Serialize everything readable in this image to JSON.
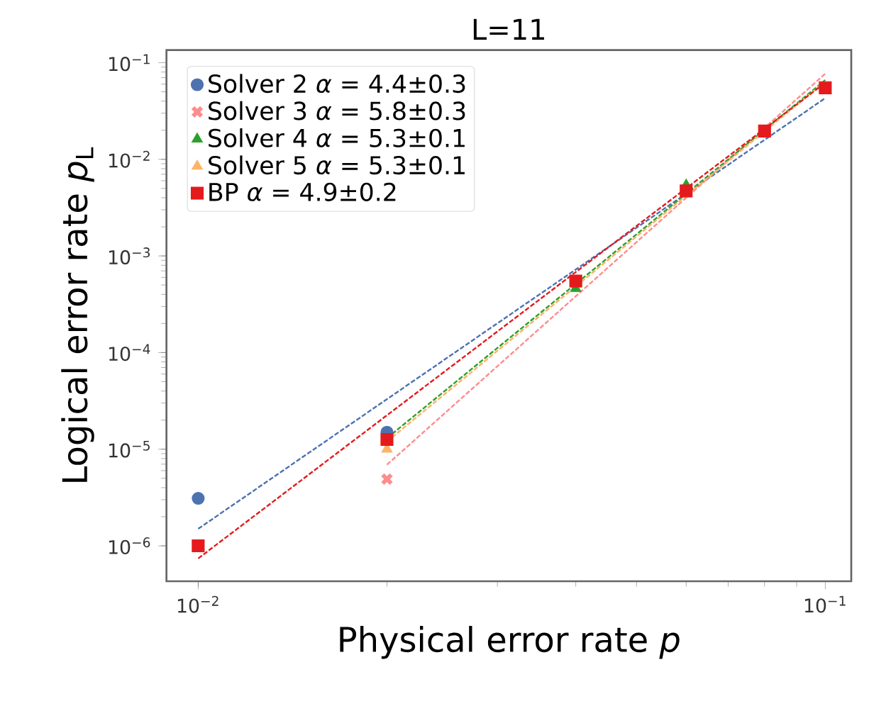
{
  "chart_data": {
    "type": "scatter",
    "title": "L=11",
    "xlabel": "Physical error rate *p*",
    "ylabel": "Logical error rate *p*$_{L}$",
    "log": "xy",
    "legend": "top left",
    "xlim": [
      0.0089,
      0.11
    ],
    "ylim": [
      4.3e-07,
      0.135
    ],
    "xticks": [
      {
        "value": 0.01,
        "label": "10$^{−2}$"
      },
      {
        "value": 0.1,
        "label": "10$^{−1}$"
      }
    ],
    "yticks": [
      {
        "value": 1e-06,
        "label": "10$^{−6}$"
      },
      {
        "value": 1e-05,
        "label": "10$^{−5}$"
      },
      {
        "value": 0.0001,
        "label": "10$^{−4}$"
      },
      {
        "value": 0.001,
        "label": "10$^{−3}$"
      },
      {
        "value": 0.01,
        "label": "10$^{−2}$"
      },
      {
        "value": 0.1,
        "label": "10$^{−1}$"
      }
    ],
    "x": [
      0.01,
      0.02,
      0.04,
      0.06,
      0.08,
      0.1
    ],
    "series": [
      {
        "x": [
          0.01,
          0.1
        ],
        "values": [
          1.5e-06,
          0.043
        ],
        "color": "#4c72b0",
        "type": "line",
        "line_style": "dashed",
        "marker": "none"
      },
      {
        "x": [
          0.02,
          0.1
        ],
        "values": [
          6.9e-06,
          0.077
        ],
        "color": "#ff8c8c",
        "type": "line",
        "line_style": "dashed",
        "marker": "none"
      },
      {
        "x": [
          0.02,
          0.1
        ],
        "values": [
          1.3e-05,
          0.066
        ],
        "color": "#2ca02c",
        "type": "line",
        "line_style": "dashed",
        "marker": "none"
      },
      {
        "x": [
          0.02,
          0.1
        ],
        "values": [
          1.2e-05,
          0.064
        ],
        "color": "#ffb366",
        "type": "line",
        "line_style": "dashed",
        "marker": "none"
      },
      {
        "x": [
          0.01,
          0.1
        ],
        "values": [
          7.4e-07,
          0.062
        ],
        "color": "#e41a1c",
        "type": "line",
        "line_style": "dashed",
        "marker": "none"
      },
      {
        "name": "Solver 2 *α* = 4.4±0.3",
        "color": "#4c72b0",
        "marker": "circle",
        "values": [
          3.1e-06,
          1.5e-05,
          null,
          null,
          null,
          null
        ]
      },
      {
        "name": "Solver 3 *α* = 5.8±0.3",
        "color": "#ff8c8c",
        "marker": "cross",
        "values": [
          null,
          4.9e-06,
          null,
          null,
          null,
          null
        ]
      },
      {
        "name": "Solver 4 *α* = 5.3±0.1",
        "color": "#2ca02c",
        "marker": "triangle",
        "values": [
          null,
          null,
          0.00046,
          0.0054,
          null,
          null
        ]
      },
      {
        "name": "Solver 5 *α* = 5.3±0.1",
        "color": "#ffb366",
        "marker": "triangle",
        "values": [
          null,
          1e-05,
          null,
          null,
          null,
          null
        ]
      },
      {
        "name": "BP *α* = 4.9±0.2",
        "color": "#e41a1c",
        "marker": "square",
        "values": [
          1e-06,
          1.26e-05,
          0.00055,
          0.0047,
          0.0196,
          0.055
        ]
      }
    ]
  }
}
